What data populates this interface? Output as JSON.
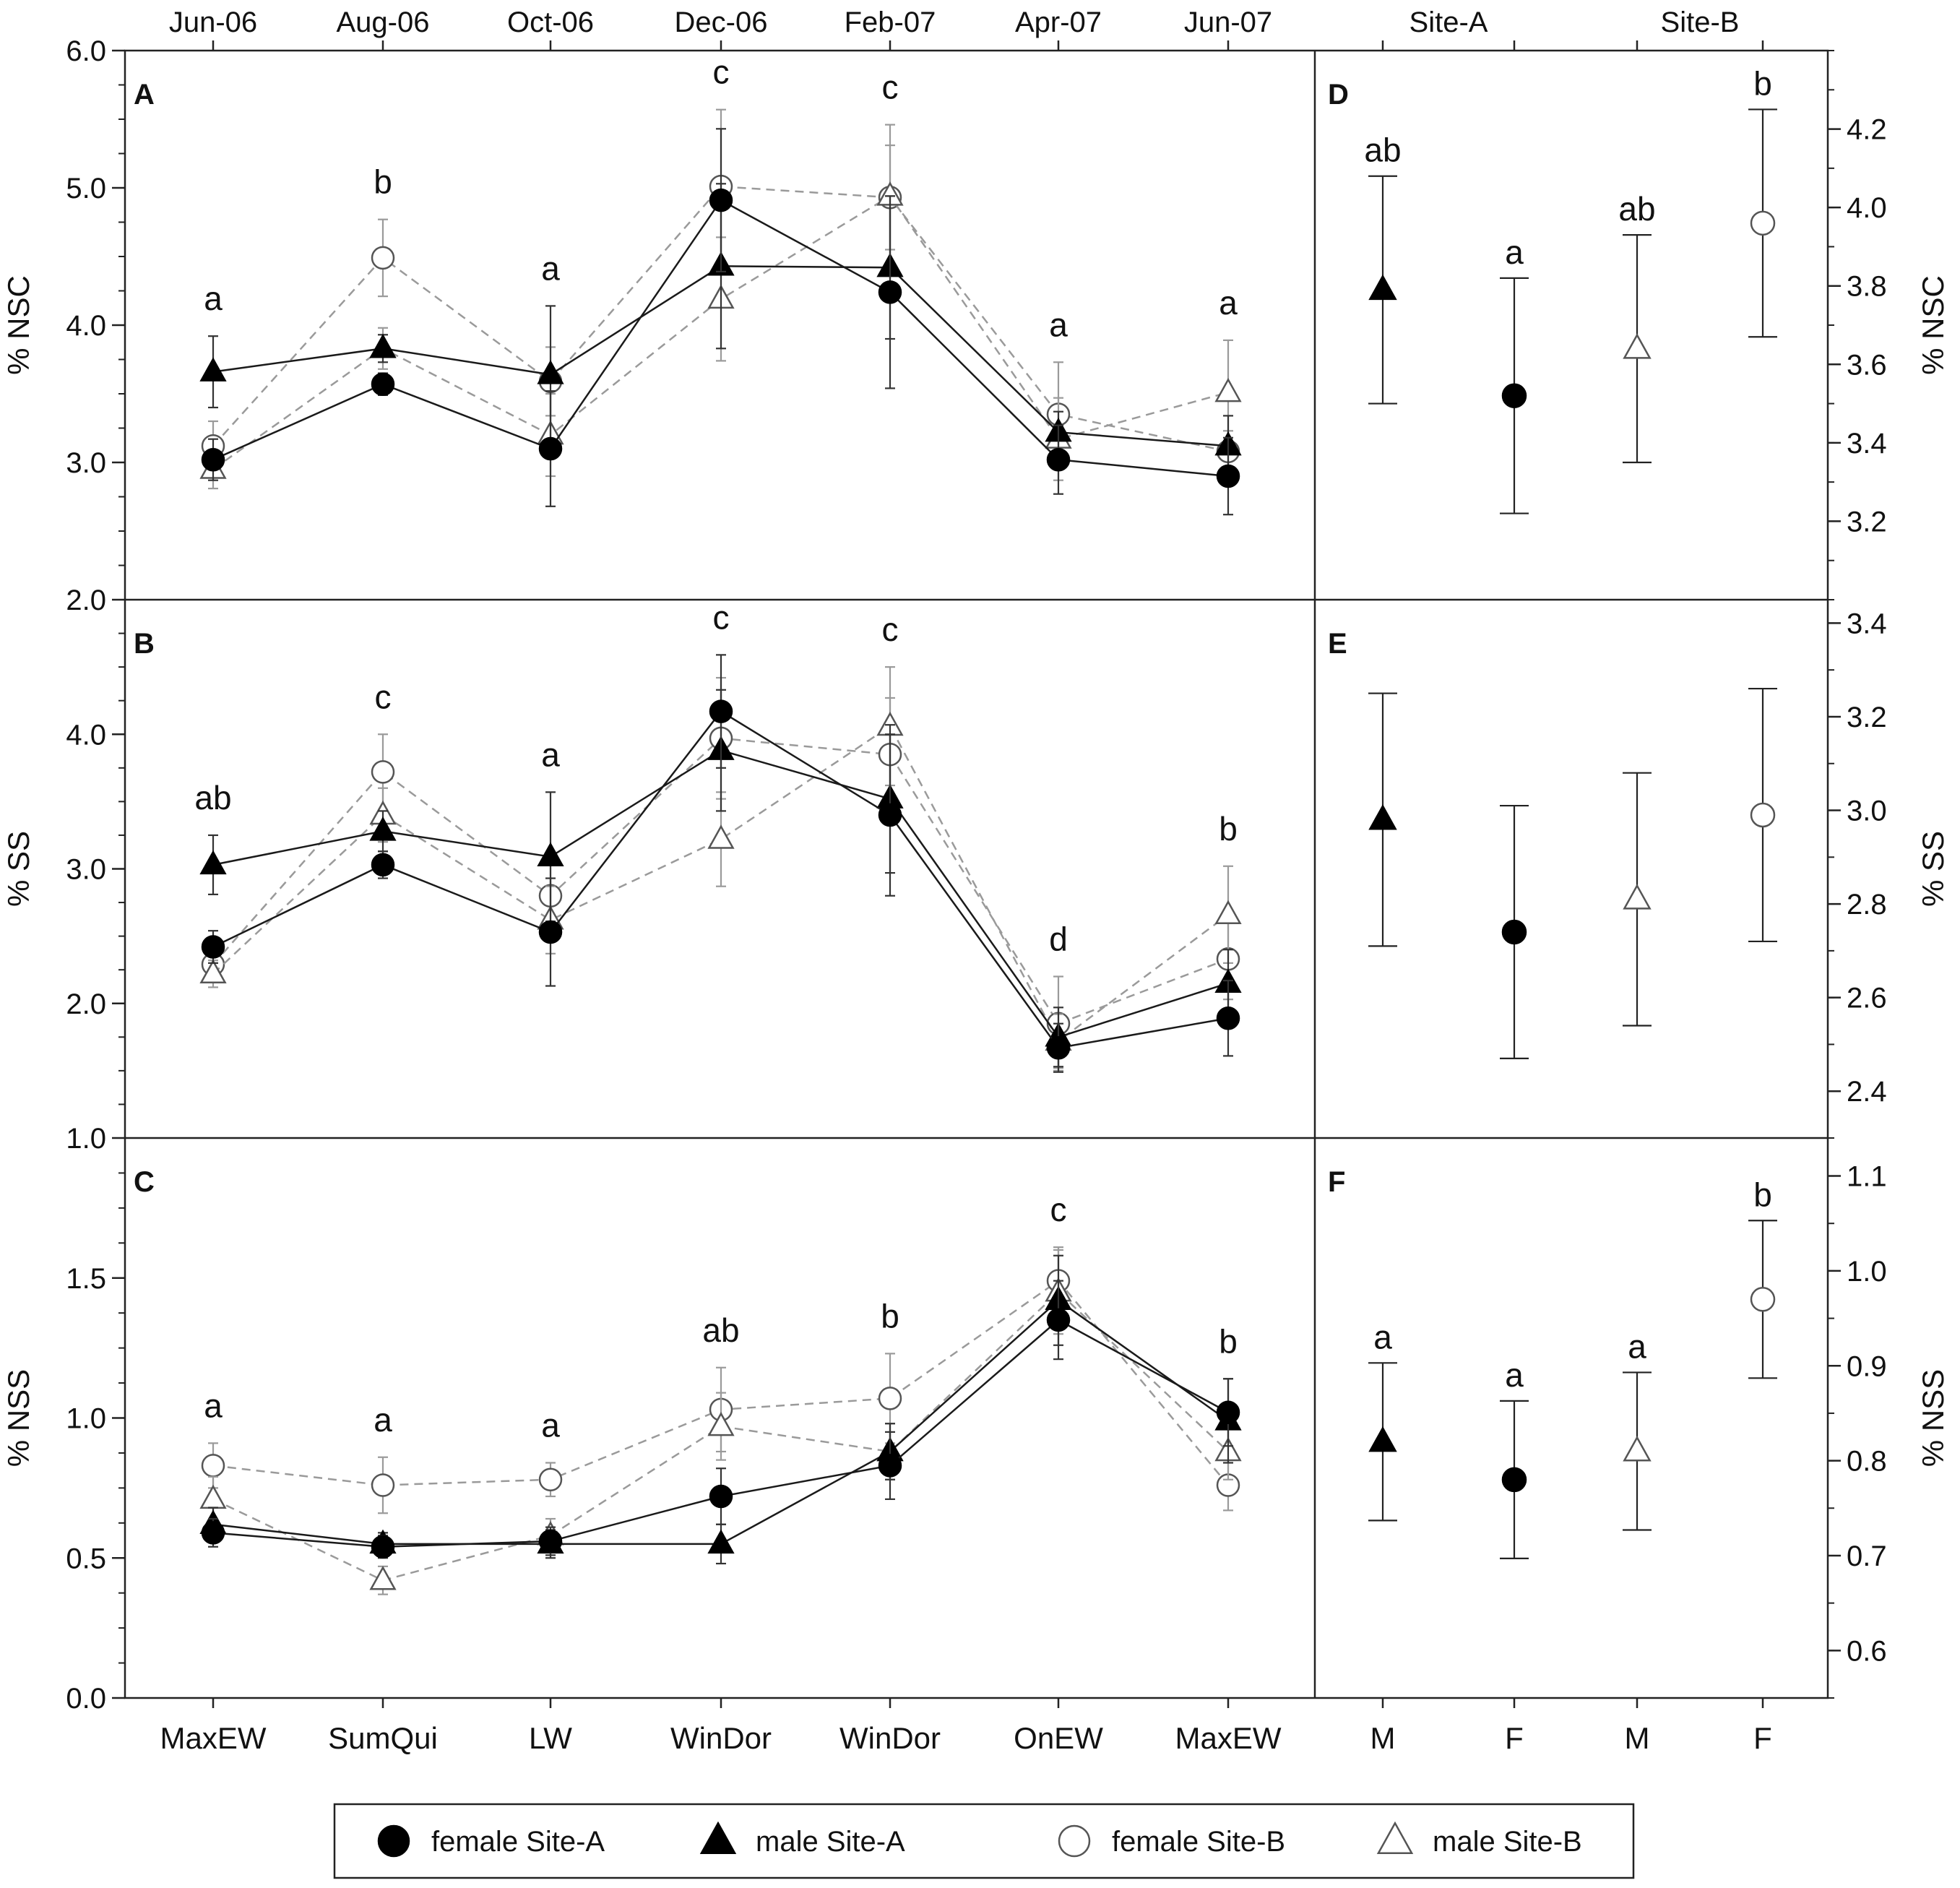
{
  "top_axis_labels": [
    "Jun-06",
    "Aug-06",
    "Oct-06",
    "Dec-06",
    "Feb-07",
    "Apr-07",
    "Jun-07"
  ],
  "site_labels": [
    "Site-A",
    "Site-B"
  ],
  "bottom_axis_labels": [
    "MaxEW",
    "SumQui",
    "LW",
    "WinDor",
    "WinDor",
    "OnEW",
    "MaxEW"
  ],
  "sex_axis_labels": [
    "M",
    "F",
    "M",
    "F"
  ],
  "series_styles": [
    {
      "key": "female_A",
      "marker": "circle",
      "fill": "#000000",
      "line": "solid",
      "line_color": "#1a1a1a"
    },
    {
      "key": "male_A",
      "marker": "triangle",
      "fill": "#000000",
      "line": "solid",
      "line_color": "#1a1a1a"
    },
    {
      "key": "female_B",
      "marker": "circle",
      "fill": "#ffffff",
      "line": "dashed",
      "line_color": "#9a9a9a"
    },
    {
      "key": "male_B",
      "marker": "triangle",
      "fill": "#ffffff",
      "line": "dashed",
      "line_color": "#9a9a9a"
    }
  ],
  "legend": {
    "items": [
      {
        "label": "female Site-A",
        "key": "female_A"
      },
      {
        "label": "male Site-A",
        "key": "male_A"
      },
      {
        "label": "female Site-B",
        "key": "female_B"
      },
      {
        "label": "male Site-B",
        "key": "male_B"
      }
    ]
  },
  "chart_data": [
    {
      "panel": "A",
      "type": "line",
      "ylabel": "% NSC",
      "ylim": [
        2.0,
        6.0
      ],
      "yticks": [
        "2.0",
        "3.0",
        "4.0",
        "5.0",
        "6.0"
      ],
      "x": [
        "Jun-06",
        "Aug-06",
        "Oct-06",
        "Dec-06",
        "Feb-07",
        "Apr-07",
        "Jun-07"
      ],
      "letters": [
        "a",
        "b",
        "a",
        "c",
        "c",
        "a",
        "a"
      ],
      "series": [
        {
          "name": "female Site-A",
          "key": "female_A",
          "values": [
            3.02,
            3.57,
            3.1,
            4.91,
            4.24,
            3.02,
            2.9
          ],
          "errors": [
            0.15,
            0.08,
            0.42,
            0.52,
            0.7,
            0.25,
            0.28
          ]
        },
        {
          "name": "male Site-A",
          "key": "male_A",
          "values": [
            3.66,
            3.83,
            3.64,
            4.43,
            4.42,
            3.22,
            3.12
          ],
          "errors": [
            0.26,
            0.1,
            0.5,
            0.6,
            0.52,
            0.15,
            0.22
          ]
        },
        {
          "name": "female Site-B",
          "key": "female_B",
          "values": [
            3.12,
            4.49,
            3.59,
            5.01,
            4.93,
            3.35,
            3.08
          ],
          "errors": [
            0.18,
            0.28,
            0.25,
            0.56,
            0.38,
            0.38,
            0.15
          ]
        },
        {
          "name": "male Site-B",
          "key": "male_B",
          "values": [
            2.95,
            3.83,
            3.2,
            4.19,
            4.94,
            3.17,
            3.51
          ],
          "errors": [
            0.14,
            0.15,
            0.3,
            0.45,
            0.52,
            0.3,
            0.38
          ]
        }
      ]
    },
    {
      "panel": "B",
      "type": "line",
      "ylabel": "% SS",
      "ylim": [
        1.0,
        5.0
      ],
      "yticks": [
        "1.0",
        "2.0",
        "3.0",
        "4.0"
      ],
      "x": [
        "Jun-06",
        "Aug-06",
        "Oct-06",
        "Dec-06",
        "Feb-07",
        "Apr-07",
        "Jun-07"
      ],
      "letters": [
        "ab",
        "c",
        "a",
        "c",
        "c",
        "d",
        "b"
      ],
      "series": [
        {
          "name": "female Site-A",
          "key": "female_A",
          "values": [
            2.42,
            3.03,
            2.53,
            4.17,
            3.4,
            1.67,
            1.89
          ],
          "errors": [
            0.12,
            0.1,
            0.4,
            0.42,
            0.6,
            0.18,
            0.28
          ]
        },
        {
          "name": "male Site-A",
          "key": "male_A",
          "values": [
            3.03,
            3.28,
            3.09,
            3.88,
            3.52,
            1.75,
            2.15
          ],
          "errors": [
            0.22,
            0.15,
            0.48,
            0.45,
            0.55,
            0.22,
            0.25
          ]
        },
        {
          "name": "female Site-B",
          "key": "female_B",
          "values": [
            2.29,
            3.72,
            2.8,
            3.97,
            3.85,
            1.85,
            2.33
          ],
          "errors": [
            0.12,
            0.28,
            0.3,
            0.45,
            0.42,
            0.35,
            0.3
          ]
        },
        {
          "name": "male Site-B",
          "key": "male_B",
          "values": [
            2.22,
            3.4,
            2.62,
            3.22,
            4.06,
            1.72,
            2.66
          ],
          "errors": [
            0.1,
            0.2,
            0.25,
            0.35,
            0.44,
            0.2,
            0.36
          ]
        }
      ]
    },
    {
      "panel": "C",
      "type": "line",
      "ylabel": "% NSS",
      "ylim": [
        0.0,
        2.0
      ],
      "yticks": [
        "0.0",
        "0.5",
        "1.0",
        "1.5"
      ],
      "x": [
        "Jun-06",
        "Aug-06",
        "Oct-06",
        "Dec-06",
        "Feb-07",
        "Apr-07",
        "Jun-07"
      ],
      "letters": [
        "a",
        "a",
        "a",
        "ab",
        "b",
        "c",
        "b"
      ],
      "series": [
        {
          "name": "female Site-A",
          "key": "female_A",
          "values": [
            0.59,
            0.54,
            0.56,
            0.72,
            0.83,
            1.35,
            1.02
          ],
          "errors": [
            0.05,
            0.04,
            0.05,
            0.1,
            0.12,
            0.14,
            0.12
          ]
        },
        {
          "name": "male Site-A",
          "key": "male_A",
          "values": [
            0.62,
            0.55,
            0.55,
            0.55,
            0.88,
            1.42,
            0.99
          ],
          "errors": [
            0.06,
            0.04,
            0.05,
            0.07,
            0.1,
            0.16,
            0.15
          ]
        },
        {
          "name": "female Site-B",
          "key": "female_B",
          "values": [
            0.83,
            0.76,
            0.78,
            1.03,
            1.07,
            1.49,
            0.76
          ],
          "errors": [
            0.08,
            0.1,
            0.06,
            0.15,
            0.16,
            0.12,
            0.09
          ]
        },
        {
          "name": "male Site-B",
          "key": "male_B",
          "values": [
            0.71,
            0.42,
            0.58,
            0.97,
            0.88,
            1.45,
            0.88
          ],
          "errors": [
            0.08,
            0.05,
            0.06,
            0.12,
            0.1,
            0.15,
            0.1
          ]
        }
      ]
    },
    {
      "panel": "D",
      "type": "scatter",
      "ylabel": "% NSC",
      "ylim": [
        3.0,
        4.4
      ],
      "yticks": [
        "3.2",
        "3.4",
        "3.6",
        "3.8",
        "4.0",
        "4.2"
      ],
      "x": [
        "M",
        "F",
        "M",
        "F"
      ],
      "site_groups": [
        "Site-A",
        "Site-A",
        "Site-B",
        "Site-B"
      ],
      "letters": [
        "ab",
        "a",
        "ab",
        "b"
      ],
      "points": [
        {
          "key": "male_A",
          "value": 3.79,
          "error": 0.29
        },
        {
          "key": "female_A",
          "value": 3.52,
          "error": 0.3
        },
        {
          "key": "male_B",
          "value": 3.64,
          "error": 0.29
        },
        {
          "key": "female_B",
          "value": 3.96,
          "error": 0.29
        }
      ]
    },
    {
      "panel": "E",
      "type": "scatter",
      "ylabel": "% SS",
      "ylim": [
        2.3,
        3.45
      ],
      "yticks": [
        "2.4",
        "2.6",
        "2.8",
        "3.0",
        "3.2",
        "3.4"
      ],
      "x": [
        "M",
        "F",
        "M",
        "F"
      ],
      "site_groups": [
        "Site-A",
        "Site-A",
        "Site-B",
        "Site-B"
      ],
      "letters": [
        "",
        "",
        "",
        ""
      ],
      "points": [
        {
          "key": "male_A",
          "value": 2.98,
          "error": 0.27
        },
        {
          "key": "female_A",
          "value": 2.74,
          "error": 0.27
        },
        {
          "key": "male_B",
          "value": 2.81,
          "error": 0.27
        },
        {
          "key": "female_B",
          "value": 2.99,
          "error": 0.27
        }
      ]
    },
    {
      "panel": "F",
      "type": "scatter",
      "ylabel": "% NSS",
      "ylim": [
        0.55,
        1.14
      ],
      "yticks": [
        "0.6",
        "0.7",
        "0.8",
        "0.9",
        "1.0",
        "1.1"
      ],
      "x": [
        "M",
        "F",
        "M",
        "F"
      ],
      "site_groups": [
        "Site-A",
        "Site-A",
        "Site-B",
        "Site-B"
      ],
      "letters": [
        "a",
        "a",
        "a",
        "b"
      ],
      "points": [
        {
          "key": "male_A",
          "value": 0.82,
          "error": 0.083
        },
        {
          "key": "female_A",
          "value": 0.78,
          "error": 0.083
        },
        {
          "key": "male_B",
          "value": 0.81,
          "error": 0.083
        },
        {
          "key": "female_B",
          "value": 0.97,
          "error": 0.083
        }
      ]
    }
  ]
}
